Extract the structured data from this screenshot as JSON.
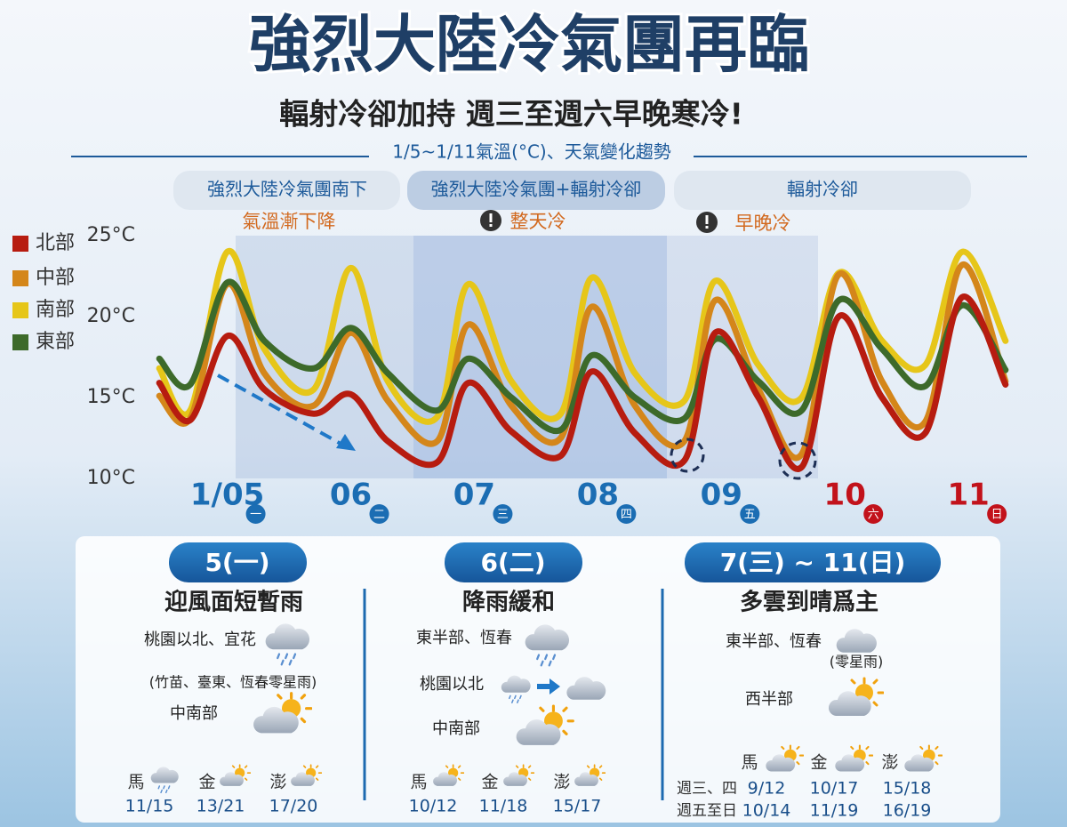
{
  "title": "強烈大陸冷氣團再臨",
  "subtitle": "輻射冷卻加持 週三至週六早晚寒冷!",
  "chart_data": {
    "type": "line",
    "title": "1/5~1/11氣溫(°C)、天氣變化趨勢",
    "periods": [
      "強烈大陸冷氣團南下",
      "強烈大陸冷氣團+輻射冷卻",
      "輻射冷卻"
    ],
    "notes": [
      "氣溫漸下降",
      "整天冷",
      "早晚冷"
    ],
    "x": [
      4.45,
      4.7,
      5.0,
      5.3,
      5.7,
      6.0,
      6.3,
      6.7,
      6.95,
      7.3,
      7.7,
      7.95,
      8.3,
      8.7,
      8.95,
      9.3,
      9.65,
      9.95,
      10.3,
      10.65,
      10.95,
      11.3
    ],
    "xlim": [
      4.42,
      11.33
    ],
    "xticks": [
      {
        "value": 5,
        "label": "1/05"
      },
      {
        "value": 6,
        "label": "06"
      },
      {
        "value": 7,
        "label": "07"
      },
      {
        "value": 8,
        "label": "08"
      },
      {
        "value": 9,
        "label": "09"
      },
      {
        "value": 10,
        "label": "10"
      },
      {
        "value": 11,
        "label": "11"
      }
    ],
    "weekdays": [
      "一",
      "二",
      "三",
      "四",
      "五",
      "六",
      "日"
    ],
    "xtick_colors": [
      "#1b6db3",
      "#1b6db3",
      "#1b6db3",
      "#1b6db3",
      "#1b6db3",
      "#c2121b",
      "#c2121b"
    ],
    "ylim": [
      10,
      25
    ],
    "yticks": [
      {
        "value": 10,
        "label": "10°C"
      },
      {
        "value": 15,
        "label": "15°C"
      },
      {
        "value": 20,
        "label": "20°C"
      },
      {
        "value": 25,
        "label": "25°C"
      }
    ],
    "series": [
      {
        "name": "北部",
        "color": "#b71c10",
        "values": [
          15.9,
          13.6,
          18.8,
          15.5,
          14.0,
          15.2,
          12.3,
          11.0,
          15.9,
          12.9,
          11.4,
          16.6,
          12.8,
          11.1,
          19.0,
          15.0,
          10.7,
          20.0,
          15.0,
          12.8,
          21.2,
          15.8
        ]
      },
      {
        "name": "中部",
        "color": "#d4861a",
        "values": [
          15.1,
          13.7,
          22.0,
          16.5,
          14.5,
          19.0,
          14.8,
          12.3,
          19.5,
          14.5,
          12.5,
          20.6,
          14.5,
          12.3,
          21.0,
          15.5,
          11.5,
          22.6,
          16.0,
          13.5,
          23.2,
          16.0
        ]
      },
      {
        "name": "南部",
        "color": "#e6c619",
        "values": [
          16.8,
          14.2,
          24.0,
          18.0,
          15.5,
          23.0,
          16.0,
          13.8,
          22.0,
          16.0,
          14.0,
          22.4,
          16.5,
          14.8,
          22.2,
          17.0,
          15.0,
          22.7,
          18.5,
          17.0,
          24.0,
          18.5
        ]
      },
      {
        "name": "東部",
        "color": "#3d6a2a",
        "values": [
          17.4,
          15.8,
          22.1,
          18.5,
          16.8,
          19.3,
          16.5,
          14.2,
          17.4,
          15.0,
          13.0,
          17.6,
          15.0,
          13.7,
          18.6,
          16.0,
          14.2,
          21.0,
          18.0,
          15.7,
          20.7,
          16.7
        ]
      }
    ]
  },
  "panels": [
    {
      "date": "5(一)",
      "headline": "迎風面短暫雨",
      "regions": [
        "桃園以北、宜花",
        "(竹苗、臺東、恆春零星雨)",
        "中南部"
      ],
      "islands": [
        {
          "name": "馬",
          "temps": [
            "11/15"
          ]
        },
        {
          "name": "金",
          "temps": [
            "13/21"
          ]
        },
        {
          "name": "澎",
          "temps": [
            "17/20"
          ]
        }
      ]
    },
    {
      "date": "6(二)",
      "headline": "降雨緩和",
      "regions": [
        "東半部、恆春",
        "桃園以北",
        "中南部"
      ],
      "islands": [
        {
          "name": "馬",
          "temps": [
            "10/12"
          ]
        },
        {
          "name": "金",
          "temps": [
            "11/18"
          ]
        },
        {
          "name": "澎",
          "temps": [
            "15/17"
          ]
        }
      ]
    },
    {
      "date": "7(三) ~ 11(日)",
      "headline": "多雲到晴爲主",
      "regions": [
        "東半部、恆春",
        "(零星雨)",
        "西半部"
      ],
      "row_labels": [
        "週三、四",
        "週五至日"
      ],
      "islands": [
        {
          "name": "馬",
          "temps": [
            "9/12",
            "10/14"
          ]
        },
        {
          "name": "金",
          "temps": [
            "10/17",
            "11/19"
          ]
        },
        {
          "name": "澎",
          "temps": [
            "15/18",
            "16/19"
          ]
        }
      ]
    }
  ]
}
